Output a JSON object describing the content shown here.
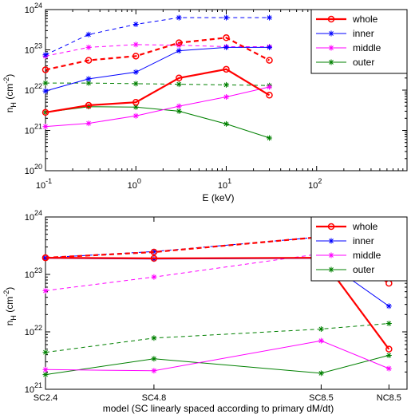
{
  "chart_data": [
    {
      "type": "line",
      "xscale": "log",
      "yscale": "log",
      "xlim": [
        0.1,
        1000
      ],
      "ylim": [
        1e+20,
        1e+24
      ],
      "xlabel": "E (keV)",
      "ylabel_main": "n",
      "ylabel_sub": "H",
      "ylabel_unit": " (cm",
      "ylabel_sup": "-2",
      "ylabel_end": ")",
      "xticks": [
        {
          "v": 0.1,
          "base": "10",
          "exp": "-1"
        },
        {
          "v": 1,
          "base": "10",
          "exp": "0"
        },
        {
          "v": 10,
          "base": "10",
          "exp": "1"
        },
        {
          "v": 100,
          "base": "10",
          "exp": "2"
        }
      ],
      "yticks": [
        {
          "v": 1e+20,
          "base": "10",
          "exp": "20"
        },
        {
          "v": 1e+21,
          "base": "10",
          "exp": "21"
        },
        {
          "v": 1e+22,
          "base": "10",
          "exp": "22"
        },
        {
          "v": 1e+23,
          "base": "10",
          "exp": "23"
        },
        {
          "v": 1e+24,
          "base": "10",
          "exp": "24"
        }
      ],
      "legend": {
        "placement": "top-right"
      },
      "x": [
        0.1,
        0.3,
        1,
        3,
        10,
        30
      ],
      "series": [
        {
          "name": "whole",
          "color": "#ff0000",
          "marker": "circle",
          "solid": [
            2.8e+21,
            4.2e+21,
            5e+21,
            2e+22,
            3.3e+22,
            7.5e+21
          ],
          "dashed": [
            3.2e+22,
            5.5e+22,
            7e+22,
            1.5e+23,
            2e+23,
            5.5e+22
          ]
        },
        {
          "name": "inner",
          "color": "#0000ff",
          "marker": "star",
          "solid": [
            9.5e+21,
            1.9e+22,
            2.8e+22,
            9.5e+22,
            1.15e+23,
            1.15e+23
          ],
          "dashed": [
            7.5e+22,
            2.4e+23,
            4.3e+23,
            6.3e+23,
            6.3e+23,
            6.3e+23
          ]
        },
        {
          "name": "middle",
          "color": "#ff00ff",
          "marker": "star",
          "solid": [
            1.25e+21,
            1.5e+21,
            2.3e+21,
            4e+21,
            6.8e+21,
            1.2e+22
          ],
          "dashed": [
            7e+22,
            1.15e+23,
            1.35e+23,
            1.3e+23,
            1.2e+23,
            1.2e+23
          ]
        },
        {
          "name": "outer",
          "color": "#008000",
          "marker": "star",
          "solid": [
            2.8e+21,
            3.9e+21,
            3.8e+21,
            3e+21,
            1.45e+21,
            6.5e+20
          ],
          "dashed": [
            1.5e+22,
            1.5e+22,
            1.45e+22,
            1.4e+22,
            1.35e+22,
            1.3e+22
          ]
        }
      ]
    },
    {
      "type": "line",
      "yscale": "log",
      "ylim": [
        1e+21,
        1e+24
      ],
      "xlabel": "model (SC linearly spaced according to primary dM/dt)",
      "ylabel_main": "n",
      "ylabel_sub": "H",
      "ylabel_unit": " (cm",
      "ylabel_sup": "-2",
      "ylabel_end": ")",
      "categories": [
        "SC2.4",
        "SC4.8",
        "SC8.5",
        "NC8.5"
      ],
      "cat_pos": [
        2.4,
        4.8,
        8.5,
        10
      ],
      "xlim": [
        2.4,
        10.4
      ],
      "yticks": [
        {
          "v": 1e+21,
          "base": "10",
          "exp": "21"
        },
        {
          "v": 1e+22,
          "base": "10",
          "exp": "22"
        },
        {
          "v": 1e+23,
          "base": "10",
          "exp": "23"
        },
        {
          "v": 1e+24,
          "base": "10",
          "exp": "24"
        }
      ],
      "legend": {
        "placement": "top-right"
      },
      "series": [
        {
          "name": "whole",
          "color": "#ff0000",
          "marker": "circle",
          "solid": [
            1.95e+23,
            1.9e+23,
            1.95e+23,
            5e+21
          ],
          "dashed": [
            1.95e+23,
            2.45e+23,
            4.5e+23,
            7e+22
          ]
        },
        {
          "name": "inner",
          "color": "#0000ff",
          "marker": "star",
          "solid": [
            1.9e+23,
            1.85e+23,
            1.9e+23,
            2.8e+22
          ],
          "dashed": [
            1.95e+23,
            2.5e+23,
            4.5e+23,
            4.4e+23
          ]
        },
        {
          "name": "middle",
          "color": "#ff00ff",
          "marker": "star",
          "solid": [
            2.2e+21,
            2.1e+21,
            7e+21,
            2.3e+21
          ],
          "dashed": [
            5.2e+22,
            9e+22,
            2.3e+23,
            1.35e+23
          ]
        },
        {
          "name": "outer",
          "color": "#008000",
          "marker": "star",
          "solid": [
            1.8e+21,
            3.4e+21,
            1.9e+21,
            3.9e+21
          ],
          "dashed": [
            4.4e+21,
            7.8e+21,
            1.12e+22,
            1.4e+22
          ]
        }
      ]
    }
  ]
}
